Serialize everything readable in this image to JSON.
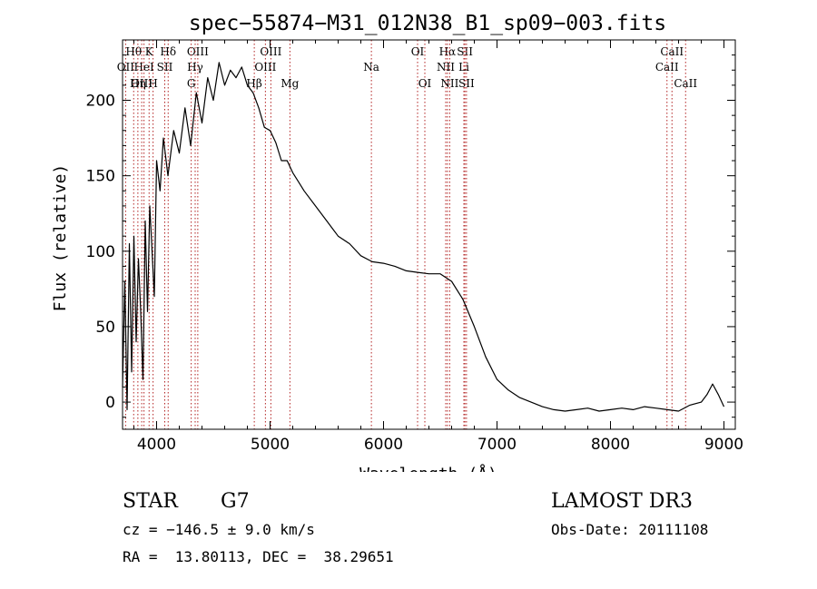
{
  "chart_data": {
    "type": "line",
    "title": "spec−55874−M31_012N38_B1_sp09−003.fits",
    "xlabel": "Wavelength (Å)",
    "ylabel": "Flux (relative)",
    "xlim": [
      3700,
      9100
    ],
    "ylim": [
      -18,
      240
    ],
    "xticks": [
      4000,
      5000,
      6000,
      7000,
      8000,
      9000
    ],
    "yticks": [
      0,
      50,
      100,
      150,
      200
    ],
    "grid": false,
    "series": [
      {
        "name": "spectrum",
        "x": [
          3700,
          3720,
          3740,
          3760,
          3780,
          3800,
          3820,
          3840,
          3860,
          3880,
          3900,
          3920,
          3940,
          3960,
          3980,
          4000,
          4030,
          4060,
          4100,
          4150,
          4200,
          4250,
          4300,
          4350,
          4400,
          4450,
          4500,
          4550,
          4600,
          4650,
          4700,
          4750,
          4800,
          4850,
          4900,
          4950,
          5000,
          5050,
          5100,
          5150,
          5200,
          5250,
          5300,
          5400,
          5500,
          5600,
          5700,
          5800,
          5900,
          6000,
          6100,
          6200,
          6300,
          6400,
          6500,
          6560,
          6600,
          6700,
          6800,
          6900,
          7000,
          7100,
          7200,
          7300,
          7400,
          7500,
          7600,
          7700,
          7800,
          7900,
          8000,
          8100,
          8200,
          8300,
          8400,
          8500,
          8600,
          8700,
          8800,
          8850,
          8900,
          8950,
          9000
        ],
        "values": [
          10,
          80,
          -5,
          105,
          20,
          110,
          40,
          95,
          60,
          15,
          120,
          60,
          130,
          100,
          70,
          160,
          140,
          175,
          150,
          180,
          165,
          195,
          170,
          205,
          185,
          215,
          200,
          225,
          210,
          220,
          215,
          222,
          210,
          205,
          195,
          182,
          180,
          172,
          160,
          160,
          152,
          146,
          140,
          130,
          120,
          110,
          105,
          97,
          93,
          92,
          90,
          87,
          86,
          85,
          85,
          82,
          80,
          68,
          50,
          30,
          15,
          8,
          3,
          0,
          -3,
          -5,
          -6,
          -5,
          -4,
          -6,
          -5,
          -4,
          -5,
          -3,
          -4,
          -5,
          -6,
          -2,
          0,
          5,
          12,
          5,
          -3
        ]
      }
    ],
    "line_markers": [
      {
        "label": "Hθ",
        "wavelength": 3798,
        "row": 1
      },
      {
        "label": "OII",
        "wavelength": 3727,
        "row": 2
      },
      {
        "label": "HeI",
        "wavelength": 3889,
        "row": 2
      },
      {
        "label": "OIII",
        "wavelength": 3869,
        "row": 3
      },
      {
        "label": "Hη",
        "wavelength": 3835,
        "row": 3
      },
      {
        "label": "K",
        "wavelength": 3934,
        "row": 1
      },
      {
        "label": "SII",
        "wavelength": 4072,
        "row": 2
      },
      {
        "label": "H",
        "wavelength": 3969,
        "row": 3
      },
      {
        "label": "Hδ",
        "wavelength": 4102,
        "row": 1
      },
      {
        "label": "OIII",
        "wavelength": 4363,
        "row": 1
      },
      {
        "label": "Hγ",
        "wavelength": 4340,
        "row": 2
      },
      {
        "label": "G",
        "wavelength": 4305,
        "row": 3
      },
      {
        "label": "Hβ",
        "wavelength": 4861,
        "row": 3
      },
      {
        "label": "OIII",
        "wavelength": 5007,
        "row": 1
      },
      {
        "label": "OIII",
        "wavelength": 4959,
        "row": 2
      },
      {
        "label": "Mg",
        "wavelength": 5175,
        "row": 3
      },
      {
        "label": "Na",
        "wavelength": 5893,
        "row": 2
      },
      {
        "label": "OI",
        "wavelength": 6300,
        "row": 1
      },
      {
        "label": "OI",
        "wavelength": 6364,
        "row": 3
      },
      {
        "label": "Hα",
        "wavelength": 6563,
        "row": 1
      },
      {
        "label": "NII",
        "wavelength": 6548,
        "row": 2
      },
      {
        "label": "NII",
        "wavelength": 6583,
        "row": 3
      },
      {
        "label": "SII",
        "wavelength": 6717,
        "row": 1
      },
      {
        "label": "Li",
        "wavelength": 6708,
        "row": 2
      },
      {
        "label": "SII",
        "wavelength": 6731,
        "row": 3
      },
      {
        "label": "CaII",
        "wavelength": 8542,
        "row": 1
      },
      {
        "label": "CaII",
        "wavelength": 8498,
        "row": 2
      },
      {
        "label": "CaII",
        "wavelength": 8662,
        "row": 3
      }
    ],
    "marker_color": "#b22222"
  },
  "info": {
    "class_label": "STAR",
    "subclass": "G7",
    "survey": "LAMOST DR3",
    "cz": "cz = −146.5 ± 9.0 km/s",
    "obs_date": "Obs-Date: 20111108",
    "coords": "RA =  13.80113, DEC =  38.29651"
  }
}
